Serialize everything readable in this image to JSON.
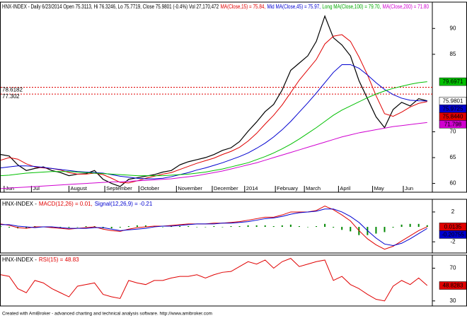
{
  "chart_data": [
    {
      "type": "line",
      "header": [
        {
          "text": "HNX-INDEX - Daily 6/23/2014 Open 75.3113, Hi 76.3246, Lo 75.7719, Close 75.9801 (-0.4%) Vol 27,170,472",
          "color": "#000000"
        },
        {
          "text": "MA(Close,15) = 75.84,",
          "color": "#e00000"
        },
        {
          "text": "Mid MA(Close,45) = 75.97,",
          "color": "#0000d0"
        },
        {
          "text": "Long MA(Close,100) = 79.70,",
          "color": "#00a800"
        },
        {
          "text": "MA(Close,200) = 71.80",
          "color": "#d000d0"
        }
      ],
      "x": [
        0,
        5,
        10,
        15,
        20,
        25,
        30,
        35,
        40,
        45,
        50,
        55,
        60,
        65,
        70,
        75,
        80,
        85,
        90,
        95,
        100,
        105,
        110,
        115,
        120,
        125,
        130,
        135,
        140,
        145,
        150,
        155,
        160,
        165,
        170,
        175,
        180,
        185,
        190,
        195,
        200,
        205,
        210,
        215,
        220,
        225,
        230,
        235,
        240,
        245,
        250
      ],
      "xlim": [
        0,
        253
      ],
      "xticks": [
        {
          "value": 2,
          "label": "Jun"
        },
        {
          "value": 18,
          "label": "Jul"
        },
        {
          "value": 40,
          "label": "August"
        },
        {
          "value": 61,
          "label": "September"
        },
        {
          "value": 81,
          "label": "October"
        },
        {
          "value": 103,
          "label": "November"
        },
        {
          "value": 124,
          "label": "December"
        },
        {
          "value": 143,
          "label": "2014"
        },
        {
          "value": 161,
          "label": "February"
        },
        {
          "value": 178,
          "label": "March"
        },
        {
          "value": 198,
          "label": "April"
        },
        {
          "value": 218,
          "label": "May"
        },
        {
          "value": 236,
          "label": "Jun"
        }
      ],
      "ylim": [
        58.3,
        95.1
      ],
      "yticks": [
        60,
        65,
        70,
        85,
        90
      ],
      "series": [
        {
          "color": "#000000",
          "values": [
            65.6,
            65.3,
            63.6,
            62.5,
            62.9,
            63.2,
            62.5,
            62.1,
            61.5,
            61.8,
            61.9,
            62.5,
            60.8,
            60.0,
            59.4,
            60.8,
            61.1,
            61.4,
            61.7,
            62.2,
            62.5,
            63.6,
            64.2,
            64.6,
            65.0,
            65.6,
            66.4,
            66.9,
            68.1,
            70.1,
            71.9,
            73.9,
            75.3,
            78.1,
            81.9,
            83.3,
            84.7,
            87.5,
            92.4,
            88.2,
            86.8,
            84.7,
            79.9,
            76.4,
            72.9,
            70.8,
            74.3,
            75.7,
            75.0,
            76.4,
            75.9801
          ]
        },
        {
          "color": "#e00000",
          "values": [
            64.5,
            65.0,
            64.7,
            63.8,
            63.2,
            63.0,
            62.9,
            62.6,
            62.1,
            61.8,
            61.8,
            62.0,
            61.7,
            61.0,
            60.2,
            60.1,
            60.5,
            61.0,
            61.4,
            61.8,
            62.1,
            62.7,
            63.3,
            63.9,
            64.4,
            64.9,
            65.6,
            66.2,
            67.0,
            68.2,
            69.7,
            71.5,
            73.2,
            75.2,
            77.6,
            80.0,
            82.0,
            84.0,
            87.0,
            88.5,
            88.8,
            87.5,
            84.5,
            81.0,
            77.0,
            73.5,
            73.0,
            73.8,
            74.8,
            75.5,
            75.844
          ]
        },
        {
          "color": "#0000d0",
          "values": [
            63.0,
            63.2,
            63.4,
            63.4,
            63.3,
            63.1,
            62.9,
            62.7,
            62.5,
            62.3,
            62.2,
            62.1,
            62.0,
            61.7,
            61.4,
            61.2,
            61.0,
            60.9,
            60.9,
            61.0,
            61.3,
            61.7,
            62.1,
            62.6,
            63.0,
            63.5,
            64.0,
            64.6,
            65.2,
            65.9,
            66.8,
            67.8,
            69.0,
            70.4,
            72.0,
            73.8,
            75.6,
            77.5,
            79.5,
            81.5,
            83.0,
            83.0,
            82.3,
            81.0,
            79.5,
            78.2,
            77.2,
            76.5,
            76.1,
            76.0,
            75.9725
          ]
        },
        {
          "color": "#00c000",
          "values": [
            61.5,
            61.6,
            61.8,
            62.0,
            62.1,
            62.2,
            62.3,
            62.3,
            62.3,
            62.2,
            62.1,
            62.0,
            61.9,
            61.8,
            61.7,
            61.6,
            61.5,
            61.5,
            61.5,
            61.5,
            61.6,
            61.7,
            61.8,
            62.0,
            62.2,
            62.5,
            62.8,
            63.2,
            63.6,
            64.0,
            64.6,
            65.2,
            65.9,
            66.7,
            67.6,
            68.6,
            69.7,
            70.8,
            72.0,
            73.2,
            74.2,
            75.0,
            75.8,
            76.6,
            77.3,
            77.9,
            78.4,
            78.8,
            79.2,
            79.5,
            79.6971
          ]
        },
        {
          "color": "#d000d0",
          "values": [
            59.0,
            59.1,
            59.2,
            59.3,
            59.4,
            59.5,
            59.6,
            59.7,
            59.8,
            59.9,
            60.0,
            60.1,
            60.2,
            60.3,
            60.3,
            60.4,
            60.5,
            60.6,
            60.7,
            60.8,
            60.9,
            61.1,
            61.3,
            61.5,
            61.8,
            62.1,
            62.4,
            62.8,
            63.2,
            63.6,
            64.0,
            64.5,
            65.0,
            65.5,
            66.0,
            66.5,
            67.0,
            67.5,
            68.0,
            68.5,
            69.0,
            69.4,
            69.8,
            70.1,
            70.4,
            70.7,
            71.0,
            71.2,
            71.4,
            71.6,
            71.798
          ]
        }
      ],
      "hlines": [
        {
          "value": 78.6182,
          "label": "78.6182",
          "color": "#e00000"
        },
        {
          "value": 77.302,
          "label": "77.302",
          "color": "#e00000"
        }
      ],
      "axis_labels": [
        {
          "value": 79.6971,
          "label": "79.6971",
          "color": "#00c000",
          "text_color": "#000000"
        },
        {
          "value": 75.9801,
          "label": "75.9801",
          "color": "#ffffff",
          "text_color": "#000000"
        },
        {
          "value": 75.9725,
          "label": "75.9725",
          "color": "#0000d0",
          "text_color": "#ffffff"
        },
        {
          "value": 75.844,
          "label": "75.8440",
          "color": "#e00000",
          "text_color": "#000000"
        },
        {
          "value": 71.798,
          "label": "71.798",
          "color": "#d000d0",
          "text_color": "#000000"
        }
      ]
    },
    {
      "type": "line",
      "header": [
        {
          "text": "HNX-INDEX -",
          "color": "#000000"
        },
        {
          "text": "MACD(12,26) = 0.01,",
          "color": "#e00000"
        },
        {
          "text": "Signal(12,26,9) = -0.21",
          "color": "#0000d0"
        }
      ],
      "x": [
        0,
        5,
        10,
        15,
        20,
        25,
        30,
        35,
        40,
        45,
        50,
        55,
        60,
        65,
        70,
        75,
        80,
        85,
        90,
        95,
        100,
        105,
        110,
        115,
        120,
        125,
        130,
        135,
        140,
        145,
        150,
        155,
        160,
        165,
        170,
        175,
        180,
        185,
        190,
        195,
        200,
        205,
        210,
        215,
        220,
        225,
        230,
        235,
        240,
        245,
        250
      ],
      "xlim": [
        0,
        253
      ],
      "ylim": [
        -3.5,
        3.7
      ],
      "yticks": [
        -2,
        2
      ],
      "series": [
        {
          "type": "bar",
          "color": "#008800",
          "values": [
            0.1,
            -0.1,
            -0.2,
            -0.2,
            0.1,
            0,
            -0.1,
            -0.1,
            -0.1,
            0,
            0.1,
            0.1,
            -0.2,
            -0.2,
            -0.1,
            0.1,
            0.2,
            0.2,
            0.1,
            0,
            0.1,
            0.1,
            0.1,
            0,
            0,
            0.1,
            0,
            0.1,
            0.1,
            0.2,
            0.2,
            0.2,
            0.1,
            0.2,
            0.3,
            0.1,
            0,
            0.1,
            0.4,
            -0.1,
            -0.4,
            -0.6,
            -1.1,
            -1.1,
            -0.9,
            -0.7,
            -0.1,
            0.3,
            0.4,
            0.4,
            0.22
          ]
        },
        {
          "color": "#e00000",
          "values": [
            0.4,
            0.2,
            -0.1,
            -0.2,
            0,
            0,
            -0.1,
            -0.2,
            -0.3,
            -0.2,
            -0.1,
            0,
            -0.3,
            -0.5,
            -0.6,
            -0.3,
            -0.1,
            0,
            0.1,
            0.1,
            0.2,
            0.3,
            0.4,
            0.4,
            0.4,
            0.5,
            0.5,
            0.6,
            0.7,
            0.9,
            1.1,
            1.3,
            1.3,
            1.6,
            2.0,
            2.0,
            2.0,
            2.2,
            2.8,
            2.3,
            1.6,
            0.8,
            -0.5,
            -1.6,
            -2.4,
            -3.0,
            -2.6,
            -1.9,
            -1.2,
            -0.5,
            0.0135
          ]
        },
        {
          "color": "#0000d0",
          "values": [
            0.3,
            0.3,
            0.1,
            0,
            -0.1,
            0,
            0,
            -0.1,
            -0.2,
            -0.2,
            -0.2,
            -0.1,
            -0.1,
            -0.3,
            -0.5,
            -0.4,
            -0.3,
            -0.2,
            0,
            0.1,
            0.1,
            0.2,
            0.3,
            0.4,
            0.4,
            0.4,
            0.5,
            0.5,
            0.6,
            0.7,
            0.9,
            1.1,
            1.2,
            1.4,
            1.7,
            1.9,
            2.0,
            2.1,
            2.4,
            2.4,
            2.0,
            1.4,
            0.6,
            -0.5,
            -1.5,
            -2.3,
            -2.5,
            -2.2,
            -1.6,
            -0.9,
            -0.20755
          ]
        }
      ],
      "axis_labels": [
        {
          "value": 0.0135,
          "label": "0.0135",
          "color": "#e00000",
          "text_color": "#ffffff"
        },
        {
          "value": -0.20755,
          "label": "-0.20755",
          "color": "#0000d0",
          "text_color": "#ffffff"
        }
      ]
    },
    {
      "type": "line",
      "header": [
        {
          "text": "HNX-INDEX -",
          "color": "#000000"
        },
        {
          "text": "RSI(15) = 48.83",
          "color": "#e00000"
        }
      ],
      "x": [
        0,
        5,
        10,
        15,
        20,
        25,
        30,
        35,
        40,
        45,
        50,
        55,
        60,
        65,
        70,
        75,
        80,
        85,
        90,
        95,
        100,
        105,
        110,
        115,
        120,
        125,
        130,
        135,
        140,
        145,
        150,
        155,
        160,
        165,
        170,
        175,
        180,
        185,
        190,
        195,
        200,
        205,
        210,
        215,
        220,
        225,
        230,
        235,
        240,
        245,
        250
      ],
      "xlim": [
        0,
        253
      ],
      "ylim": [
        23.8,
        86
      ],
      "yticks": [
        30,
        70
      ],
      "series": [
        {
          "color": "#e00000",
          "values": [
            62,
            60,
            45,
            40,
            55,
            52,
            45,
            40,
            35,
            48,
            50,
            52,
            38,
            35,
            33,
            55,
            52,
            50,
            55,
            55,
            58,
            60,
            60,
            62,
            58,
            62,
            65,
            66,
            72,
            78,
            75,
            80,
            70,
            78,
            82,
            72,
            75,
            78,
            80,
            55,
            60,
            50,
            45,
            38,
            32,
            30,
            48,
            55,
            50,
            58,
            48.8283
          ]
        }
      ],
      "axis_labels": [
        {
          "value": 48.8283,
          "label": "48.8283",
          "color": "#e00000",
          "text_color": "#000000"
        }
      ]
    }
  ],
  "footer": "Created with AmiBroker - advanced charting and technical analysis software. http://www.amibroker.com"
}
